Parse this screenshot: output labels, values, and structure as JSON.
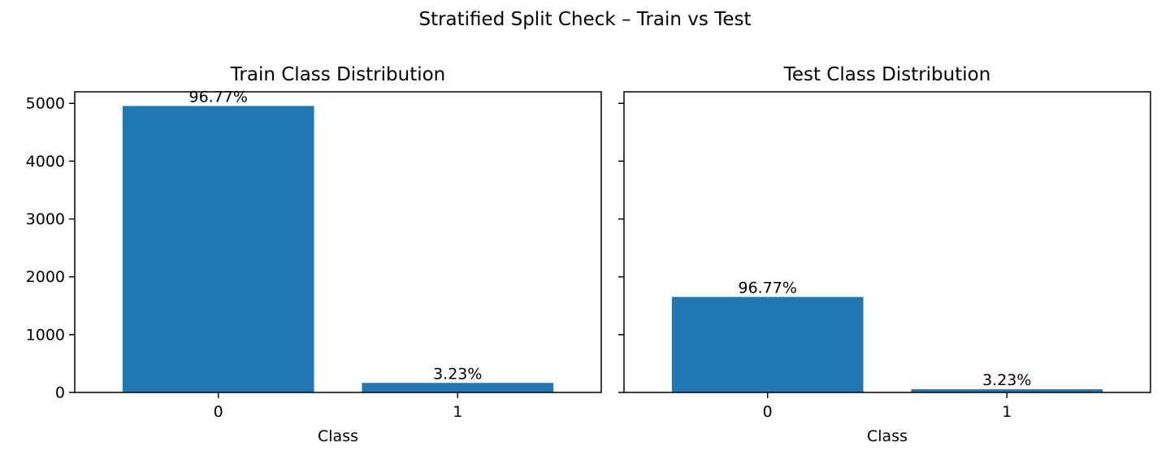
{
  "figure": {
    "suptitle": "Stratified Split Check – Train vs Test",
    "bar_color": "#1f77b4",
    "ylim": [
      0,
      5200
    ],
    "y_ticks": [
      0,
      1000,
      2000,
      3000,
      4000,
      5000
    ],
    "shared_y": true
  },
  "chart_data": [
    {
      "type": "bar",
      "title": "Train Class Distribution",
      "xlabel": "Class",
      "ylabel": "",
      "categories": [
        "0",
        "1"
      ],
      "values": [
        4955,
        165
      ],
      "labels": [
        "96.77%",
        "3.23%"
      ],
      "ylim": [
        0,
        5200
      ]
    },
    {
      "type": "bar",
      "title": "Test Class Distribution",
      "xlabel": "Class",
      "ylabel": "",
      "categories": [
        "0",
        "1"
      ],
      "values": [
        1652,
        55
      ],
      "labels": [
        "96.77%",
        "3.23%"
      ],
      "ylim": [
        0,
        5200
      ]
    }
  ]
}
